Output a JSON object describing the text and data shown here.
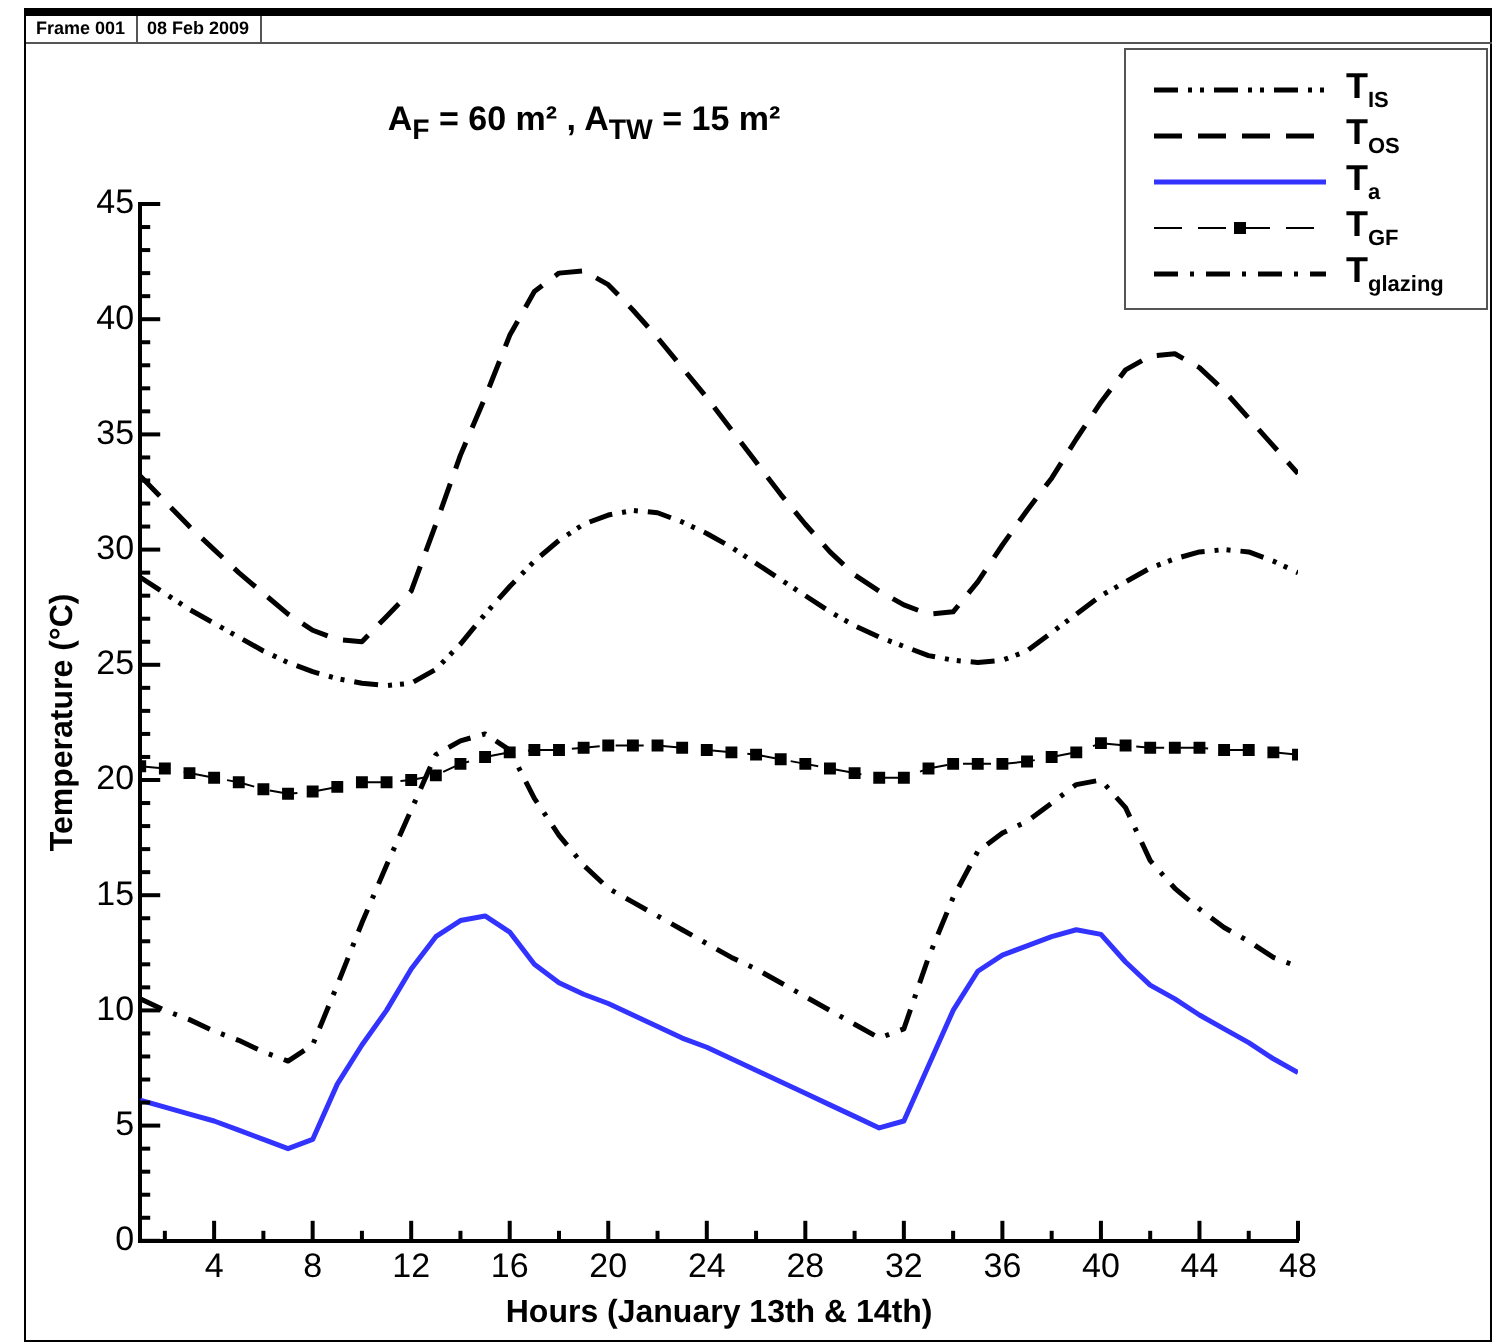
{
  "chart_data": {
    "type": "line",
    "title": "A$_{F}$ = 60 m² , A$_{TW}$ = 15 m²",
    "xlabel": "Hours (January 13th & 14th)",
    "ylabel": "Temperature (°C)",
    "annotations": [
      "Frame 001",
      "08 Feb 2009"
    ],
    "x": [
      1,
      2,
      3,
      4,
      5,
      6,
      7,
      8,
      9,
      10,
      11,
      12,
      13,
      14,
      15,
      16,
      17,
      18,
      19,
      20,
      21,
      22,
      23,
      24,
      25,
      26,
      27,
      28,
      29,
      30,
      31,
      32,
      33,
      34,
      35,
      36,
      37,
      38,
      39,
      40,
      41,
      42,
      43,
      44,
      45,
      46,
      47,
      48
    ],
    "series": [
      {
        "name": "T$_{IS}$",
        "color": "#000000",
        "line_style": "dashdotdot",
        "marker": "none",
        "values": [
          28.8,
          28.1,
          27.4,
          26.8,
          26.2,
          25.6,
          25.1,
          24.7,
          24.4,
          24.2,
          24.1,
          24.2,
          24.8,
          25.9,
          27.2,
          28.4,
          29.5,
          30.4,
          31.1,
          31.5,
          31.7,
          31.6,
          31.2,
          30.7,
          30.1,
          29.4,
          28.7,
          28.0,
          27.3,
          26.7,
          26.2,
          25.8,
          25.4,
          25.2,
          25.1,
          25.2,
          25.6,
          26.4,
          27.2,
          28.0,
          28.6,
          29.2,
          29.6,
          29.9,
          30.0,
          29.9,
          29.5,
          29.0
        ]
      },
      {
        "name": "T$_{OS}$",
        "color": "#000000",
        "line_style": "dashed",
        "marker": "none",
        "values": [
          33.2,
          32.1,
          31.0,
          30.0,
          29.0,
          28.1,
          27.2,
          26.5,
          26.1,
          26.0,
          27.1,
          28.2,
          31.1,
          34.1,
          36.6,
          39.3,
          41.2,
          42.0,
          42.1,
          41.5,
          40.4,
          39.2,
          37.9,
          36.6,
          35.2,
          33.8,
          32.4,
          31.1,
          29.9,
          28.9,
          28.2,
          27.6,
          27.2,
          27.3,
          28.6,
          30.2,
          31.7,
          33.1,
          34.8,
          36.4,
          37.8,
          38.4,
          38.5,
          37.9,
          36.9,
          35.7,
          34.5,
          33.3
        ]
      },
      {
        "name": "T$_{a}$",
        "color": "#3333ff",
        "line_style": "solid",
        "marker": "none",
        "values": [
          6.1,
          5.8,
          5.5,
          5.2,
          4.8,
          4.4,
          4.0,
          4.4,
          6.8,
          8.5,
          10.0,
          11.8,
          13.2,
          13.9,
          14.1,
          13.4,
          12.0,
          11.2,
          10.7,
          10.3,
          9.8,
          9.3,
          8.8,
          8.4,
          7.9,
          7.4,
          6.9,
          6.4,
          5.9,
          5.4,
          4.9,
          5.2,
          7.6,
          10.0,
          11.7,
          12.4,
          12.8,
          13.2,
          13.5,
          13.3,
          12.1,
          11.1,
          10.5,
          9.8,
          9.2,
          8.6,
          7.9,
          7.3
        ]
      },
      {
        "name": "T$_{GF}$",
        "color": "#000000",
        "line_style": "dashed",
        "marker": "square",
        "values": [
          20.6,
          20.5,
          20.3,
          20.1,
          19.9,
          19.6,
          19.4,
          19.5,
          19.7,
          19.9,
          19.9,
          20.0,
          20.2,
          20.7,
          21.0,
          21.2,
          21.3,
          21.3,
          21.4,
          21.5,
          21.5,
          21.5,
          21.4,
          21.3,
          21.2,
          21.1,
          20.9,
          20.7,
          20.5,
          20.3,
          20.1,
          20.1,
          20.5,
          20.7,
          20.7,
          20.7,
          20.8,
          21.0,
          21.2,
          21.6,
          21.5,
          21.4,
          21.4,
          21.4,
          21.3,
          21.3,
          21.2,
          21.1
        ]
      },
      {
        "name": "T$_{glazing}$",
        "color": "#000000",
        "line_style": "dashdot",
        "marker": "none",
        "values": [
          10.5,
          10.0,
          9.6,
          9.1,
          8.7,
          8.2,
          7.8,
          8.5,
          11.1,
          13.8,
          16.3,
          18.7,
          21.1,
          21.7,
          22.0,
          21.3,
          19.2,
          17.6,
          16.3,
          15.3,
          14.7,
          14.1,
          13.5,
          12.9,
          12.3,
          11.8,
          11.2,
          10.6,
          10.0,
          9.4,
          8.8,
          9.2,
          12.3,
          14.9,
          16.9,
          17.7,
          18.2,
          19.0,
          19.8,
          20.0,
          18.8,
          16.5,
          15.3,
          14.4,
          13.6,
          13.0,
          12.3,
          11.9
        ]
      }
    ],
    "xlim": [
      1,
      48
    ],
    "ylim": [
      0,
      45
    ],
    "xticks": [
      {
        "value": 2,
        "label": null
      },
      4,
      {
        "value": 6,
        "label": null
      },
      8,
      {
        "value": 10,
        "label": null
      },
      12,
      {
        "value": 14,
        "label": null
      },
      16,
      {
        "value": 18,
        "label": null
      },
      20,
      {
        "value": 22,
        "label": null
      },
      24,
      {
        "value": 26,
        "label": null
      },
      28,
      {
        "value": 30,
        "label": null
      },
      32,
      {
        "value": 34,
        "label": null
      },
      36,
      {
        "value": 38,
        "label": null
      },
      40,
      {
        "value": 42,
        "label": null
      },
      44,
      {
        "value": 46,
        "label": null
      },
      48
    ],
    "yticks": [
      0,
      {
        "value": 1,
        "label": null
      },
      {
        "value": 2,
        "label": null
      },
      {
        "value": 3,
        "label": null
      },
      {
        "value": 4,
        "label": null
      },
      5,
      {
        "value": 6,
        "label": null
      },
      {
        "value": 7,
        "label": null
      },
      {
        "value": 8,
        "label": null
      },
      {
        "value": 9,
        "label": null
      },
      10,
      {
        "value": 11,
        "label": null
      },
      {
        "value": 12,
        "label": null
      },
      {
        "value": 13,
        "label": null
      },
      {
        "value": 14,
        "label": null
      },
      15,
      {
        "value": 16,
        "label": null
      },
      {
        "value": 17,
        "label": null
      },
      {
        "value": 18,
        "label": null
      },
      {
        "value": 19,
        "label": null
      },
      20,
      {
        "value": 21,
        "label": null
      },
      {
        "value": 22,
        "label": null
      },
      {
        "value": 23,
        "label": null
      },
      {
        "value": 24,
        "label": null
      },
      25,
      {
        "value": 26,
        "label": null
      },
      {
        "value": 27,
        "label": null
      },
      {
        "value": 28,
        "label": null
      },
      {
        "value": 29,
        "label": null
      },
      30,
      {
        "value": 31,
        "label": null
      },
      {
        "value": 32,
        "label": null
      },
      {
        "value": 33,
        "label": null
      },
      {
        "value": 34,
        "label": null
      },
      35,
      {
        "value": 36,
        "label": null
      },
      {
        "value": 37,
        "label": null
      },
      {
        "value": 38,
        "label": null
      },
      {
        "value": 39,
        "label": null
      },
      40,
      {
        "value": 41,
        "label": null
      },
      {
        "value": 42,
        "label": null
      },
      {
        "value": 43,
        "label": null
      },
      {
        "value": 44,
        "label": null
      },
      45
    ],
    "grid": false,
    "legend": "top right"
  }
}
